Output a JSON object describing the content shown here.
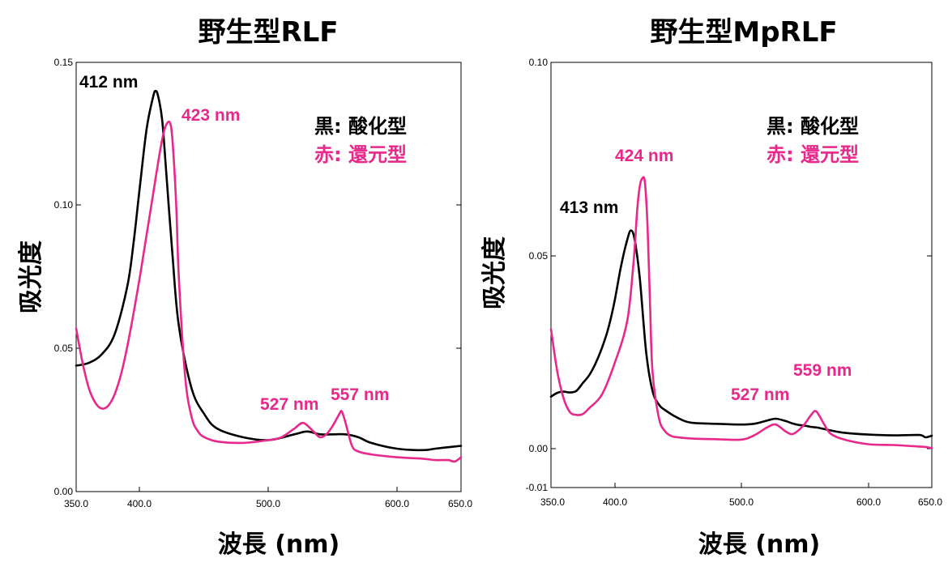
{
  "colors": {
    "oxidized": "#000000",
    "reduced": "#e8288a"
  },
  "chart_data": [
    {
      "type": "line",
      "title": "野生型RLF",
      "xlabel": "波長 (nm)",
      "ylabel": "吸光度",
      "xlim": [
        350,
        650
      ],
      "ylim": [
        0,
        0.15
      ],
      "x_ticks": [
        "350.0",
        "400.0",
        "500.0",
        "600.0",
        "650.0"
      ],
      "y_ticks": [
        "0.00",
        "0.05",
        "0.10",
        "0.15"
      ],
      "legend": {
        "placement": "top-right",
        "oxidized_label": "黒: 酸化型",
        "reduced_label": "赤: 還元型"
      },
      "annotations": [
        "412 nm",
        "423 nm",
        "527 nm",
        "557 nm"
      ],
      "series": [
        {
          "color_key": "oxidized",
          "x": [
            350,
            360,
            370,
            380,
            390,
            395,
            400,
            405,
            410,
            412,
            414,
            417,
            420,
            425,
            430,
            440,
            450,
            460,
            480,
            500,
            520,
            530,
            540,
            550,
            560,
            570,
            580,
            600,
            620,
            630,
            640,
            650
          ],
          "y": [
            0.044,
            0.045,
            0.048,
            0.055,
            0.072,
            0.088,
            0.108,
            0.127,
            0.138,
            0.14,
            0.138,
            0.13,
            0.113,
            0.083,
            0.058,
            0.036,
            0.027,
            0.022,
            0.019,
            0.018,
            0.02,
            0.021,
            0.02,
            0.02,
            0.02,
            0.019,
            0.017,
            0.015,
            0.0145,
            0.015,
            0.0155,
            0.016
          ]
        },
        {
          "color_key": "reduced",
          "x": [
            350,
            355,
            360,
            365,
            370,
            375,
            380,
            385,
            390,
            395,
            400,
            405,
            410,
            415,
            418,
            420,
            423,
            425,
            428,
            430,
            435,
            440,
            445,
            450,
            460,
            480,
            500,
            510,
            520,
            527,
            535,
            540,
            545,
            550,
            555,
            557,
            560,
            565,
            570,
            580,
            600,
            620,
            630,
            640,
            645,
            650
          ],
          "y": [
            0.057,
            0.045,
            0.036,
            0.031,
            0.029,
            0.03,
            0.034,
            0.041,
            0.051,
            0.063,
            0.076,
            0.09,
            0.104,
            0.118,
            0.125,
            0.128,
            0.129,
            0.123,
            0.1,
            0.075,
            0.04,
            0.026,
            0.021,
            0.019,
            0.0175,
            0.017,
            0.018,
            0.019,
            0.022,
            0.024,
            0.021,
            0.019,
            0.02,
            0.023,
            0.027,
            0.028,
            0.024,
            0.016,
            0.014,
            0.013,
            0.012,
            0.0115,
            0.011,
            0.011,
            0.0105,
            0.012
          ]
        }
      ]
    },
    {
      "type": "line",
      "title": "野生型MpRLF",
      "xlabel": "波長 (nm)",
      "ylabel": "吸光度",
      "xlim": [
        350,
        650
      ],
      "ylim": [
        -0.01,
        0.1
      ],
      "x_ticks": [
        "350.0",
        "400.0",
        "500.0",
        "600.0",
        "650.0"
      ],
      "y_ticks": [
        "-0.01",
        "0.00",
        "0.05",
        "0.10"
      ],
      "legend": {
        "placement": "top-right",
        "oxidized_label": "黒: 酸化型",
        "reduced_label": "赤: 還元型"
      },
      "annotations": [
        "413 nm",
        "424 nm",
        "527 nm",
        "559 nm"
      ],
      "series": [
        {
          "color_key": "oxidized",
          "x": [
            350,
            355,
            360,
            365,
            370,
            375,
            380,
            385,
            390,
            395,
            400,
            405,
            410,
            413,
            416,
            420,
            425,
            430,
            435,
            440,
            450,
            460,
            480,
            500,
            510,
            520,
            527,
            535,
            540,
            545,
            550,
            555,
            560,
            570,
            580,
            600,
            620,
            640,
            645,
            650
          ],
          "y": [
            0.0135,
            0.0145,
            0.0148,
            0.0146,
            0.015,
            0.017,
            0.019,
            0.022,
            0.026,
            0.031,
            0.038,
            0.047,
            0.054,
            0.0565,
            0.054,
            0.044,
            0.025,
            0.015,
            0.0115,
            0.01,
            0.008,
            0.0068,
            0.0065,
            0.0063,
            0.0065,
            0.0073,
            0.0078,
            0.0072,
            0.0066,
            0.0062,
            0.006,
            0.0057,
            0.0055,
            0.0048,
            0.0042,
            0.0037,
            0.0035,
            0.0036,
            0.003,
            0.0034
          ]
        },
        {
          "color_key": "reduced",
          "x": [
            350,
            355,
            360,
            365,
            370,
            375,
            380,
            390,
            400,
            410,
            415,
            418,
            420,
            422,
            424,
            426,
            428,
            430,
            435,
            440,
            445,
            450,
            460,
            480,
            500,
            510,
            520,
            527,
            535,
            540,
            545,
            550,
            555,
            559,
            565,
            570,
            580,
            600,
            620,
            640,
            645,
            650
          ],
          "y": [
            0.031,
            0.02,
            0.013,
            0.0095,
            0.0088,
            0.009,
            0.0105,
            0.014,
            0.022,
            0.033,
            0.048,
            0.062,
            0.068,
            0.07,
            0.069,
            0.058,
            0.038,
            0.02,
            0.008,
            0.0045,
            0.0033,
            0.003,
            0.0027,
            0.0025,
            0.0024,
            0.0035,
            0.0055,
            0.0063,
            0.0045,
            0.0038,
            0.0048,
            0.0065,
            0.0088,
            0.0097,
            0.0065,
            0.004,
            0.0025,
            0.0012,
            0.001,
            0.0006,
            0.0005,
            0.0002
          ]
        }
      ]
    }
  ]
}
